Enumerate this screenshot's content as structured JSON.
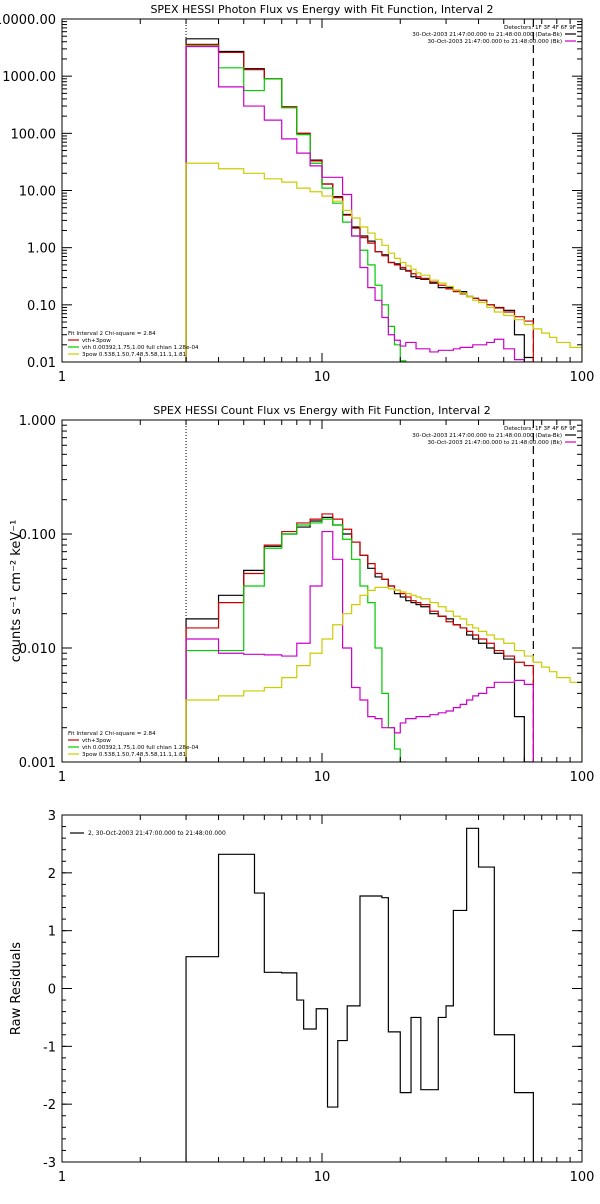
{
  "chart_data": [
    {
      "type": "line",
      "title": "SPEX HESSI Photon Flux vs Energy with Fit Function, Interval 2",
      "xscale": "log",
      "yscale": "log",
      "xlim": [
        1,
        100
      ],
      "ylim": [
        0.01,
        10000
      ],
      "xticks": [
        1,
        10,
        100
      ],
      "xtick_labels": [
        "1",
        "10",
        "100"
      ],
      "yticks": [
        0.01,
        0.1,
        1,
        10,
        100,
        1000,
        10000
      ],
      "ytick_labels": [
        "0.01",
        "0.10",
        "1.00",
        "10.00",
        "100.00",
        "1000.00",
        "10000.00"
      ],
      "dotted_x": 3,
      "dashed_x": 65,
      "info_lines": [
        "Detectors: 1F 3F 4F 6F 9F",
        "30-Oct-2003 21:47:00.000 to 21:48:00.000 (Data-Bk)",
        "30-Oct-2003 21:47:00.000 to 21:48:00.000 (Bk)"
      ],
      "info_colors": [
        "",
        "#000000",
        "#cc00cc"
      ],
      "fit_lines": [
        "Fit Interval 2   Chi-square = 2.84",
        "vth+3pow",
        "vth 0.00392,1.75,1.00  full chian 1.28e-04",
        "3pow 0.538,1.50,7.48,5.58,11.1,1.81"
      ],
      "fit_colors": [
        "",
        "#cc0000",
        "#00cc00",
        "#cccc00"
      ],
      "edges": [
        3,
        3.5,
        4,
        4.5,
        5,
        5.5,
        6,
        6.5,
        7,
        7.5,
        8,
        8.5,
        9,
        9.5,
        10,
        10.5,
        11,
        11.5,
        12,
        12.5,
        13,
        14,
        15,
        16,
        17,
        18,
        19,
        20,
        21,
        22,
        23,
        24,
        26,
        28,
        30,
        32,
        34,
        36,
        38,
        40,
        43,
        46,
        50,
        55,
        60,
        65,
        70,
        75,
        80,
        90,
        100
      ],
      "series": [
        {
          "color": "#000000",
          "values": [
            4500,
            4500,
            2700,
            2700,
            1350,
            1350,
            900,
            900,
            290,
            290,
            100,
            100,
            34,
            34,
            13,
            13,
            7.8,
            7.8,
            3.8,
            3.8,
            2.3,
            1.6,
            1.3,
            0.85,
            0.75,
            0.55,
            0.52,
            0.42,
            0.39,
            0.31,
            0.29,
            0.28,
            0.24,
            0.2,
            0.2,
            0.18,
            0.17,
            0.14,
            0.13,
            0.12,
            0.1,
            0.09,
            0.08,
            0.03,
            0.012,
            null,
            null,
            null,
            null,
            null
          ]
        },
        {
          "color": "#cc0000",
          "values": [
            3600,
            3600,
            2600,
            2600,
            1300,
            1300,
            900,
            900,
            290,
            290,
            100,
            100,
            33,
            33,
            13,
            13,
            7.5,
            7.5,
            3.7,
            3.7,
            2.2,
            1.5,
            1.2,
            0.85,
            0.72,
            0.55,
            0.5,
            0.45,
            0.4,
            0.35,
            0.31,
            0.29,
            0.25,
            0.22,
            0.19,
            0.17,
            0.155,
            0.14,
            0.13,
            0.12,
            0.1,
            0.088,
            0.075,
            0.062,
            0.052,
            null,
            null,
            null,
            null,
            null
          ]
        },
        {
          "color": "#00cc00",
          "values": [
            3400,
            3400,
            1400,
            1400,
            560,
            560,
            900,
            900,
            280,
            280,
            95,
            95,
            30,
            30,
            11,
            11,
            6,
            6,
            2.8,
            2.8,
            1.6,
            0.9,
            0.5,
            0.22,
            0.1,
            0.042,
            0.02,
            0.0105,
            null,
            null,
            null,
            null,
            null,
            null,
            null,
            null,
            null,
            null,
            null,
            null,
            null,
            null,
            null,
            null,
            null,
            null,
            null,
            null,
            null,
            null
          ]
        },
        {
          "color": "#cc00cc",
          "values": [
            3300,
            3300,
            650,
            650,
            300,
            300,
            170,
            170,
            80,
            80,
            45,
            45,
            27,
            27,
            17,
            17,
            17,
            17,
            8.5,
            8.5,
            1.6,
            0.45,
            0.2,
            0.12,
            0.06,
            0.03,
            0.024,
            0.019,
            0.022,
            0.022,
            0.017,
            0.017,
            0.015,
            0.016,
            0.016,
            0.017,
            0.018,
            0.018,
            0.02,
            0.02,
            0.022,
            0.025,
            0.017,
            0.011,
            0.01,
            null,
            null,
            null,
            null,
            null
          ]
        },
        {
          "color": "#cccc00",
          "values": [
            30,
            30,
            24,
            24,
            20,
            20,
            16,
            16,
            14,
            14,
            11,
            11,
            9.5,
            9.5,
            8,
            8,
            6.5,
            6.5,
            4.5,
            4.5,
            3.3,
            2.3,
            1.8,
            1.4,
            1.1,
            0.8,
            0.65,
            0.55,
            0.48,
            0.42,
            0.36,
            0.33,
            0.27,
            0.24,
            0.21,
            0.18,
            0.16,
            0.14,
            0.12,
            0.11,
            0.09,
            0.075,
            0.065,
            0.055,
            0.045,
            0.038,
            0.032,
            0.027,
            0.022,
            0.018
          ]
        }
      ]
    },
    {
      "type": "line",
      "title": "SPEX HESSI Count Flux vs Energy with Fit Function, Interval 2",
      "ylabel": "counts s⁻¹ cm⁻² keV⁻¹",
      "xscale": "log",
      "yscale": "log",
      "xlim": [
        1,
        100
      ],
      "ylim": [
        0.001,
        1
      ],
      "xticks": [
        1,
        10,
        100
      ],
      "xtick_labels": [
        "1",
        "10",
        "100"
      ],
      "yticks": [
        0.001,
        0.01,
        0.1,
        1
      ],
      "ytick_labels": [
        "0.001",
        "0.010",
        "0.100",
        "1.000"
      ],
      "dotted_x": 3,
      "dashed_x": 65,
      "info_lines": [
        "Detectors: 1F 3F 4F 6F 9F",
        "30-Oct-2003 21:47:00.000 to 21:48:00.000 (Data-Bk)",
        "30-Oct-2003 21:47:00.000 to 21:48:00.000 (Bk)"
      ],
      "info_colors": [
        "",
        "#000000",
        "#cc00cc"
      ],
      "fit_lines": [
        "Fit Interval 2   Chi-square = 2.84",
        "vth+3pow",
        "vth 0.00392,1.75,1.00  full chian 1.28e-04",
        "3pow 0.538,1.50,7.48,5.58,11.1,1.81"
      ],
      "fit_colors": [
        "",
        "#cc0000",
        "#00cc00",
        "#cccc00"
      ],
      "edges": [
        3,
        3.5,
        4,
        4.5,
        5,
        5.5,
        6,
        6.5,
        7,
        7.5,
        8,
        8.5,
        9,
        9.5,
        10,
        10.5,
        11,
        11.5,
        12,
        12.5,
        13,
        14,
        15,
        16,
        17,
        18,
        19,
        20,
        21,
        22,
        23,
        24,
        26,
        28,
        30,
        32,
        34,
        36,
        38,
        40,
        43,
        46,
        50,
        55,
        60,
        65,
        70,
        75,
        80,
        90,
        100
      ],
      "series": [
        {
          "color": "#000000",
          "values": [
            0.018,
            0.018,
            0.029,
            0.029,
            0.048,
            0.048,
            0.078,
            0.078,
            0.1,
            0.1,
            0.115,
            0.115,
            0.13,
            0.13,
            0.14,
            0.14,
            0.12,
            0.12,
            0.1,
            0.1,
            0.085,
            0.065,
            0.05,
            0.042,
            0.04,
            0.035,
            0.03,
            0.028,
            0.026,
            0.025,
            0.024,
            0.023,
            0.02,
            0.019,
            0.018,
            0.016,
            0.015,
            0.013,
            0.012,
            0.011,
            0.01,
            0.009,
            0.008,
            0.0025,
            0.001,
            null,
            null,
            null,
            null,
            null
          ]
        },
        {
          "color": "#cc0000",
          "values": [
            0.015,
            0.015,
            0.025,
            0.025,
            0.045,
            0.045,
            0.08,
            0.08,
            0.105,
            0.105,
            0.125,
            0.125,
            0.135,
            0.135,
            0.15,
            0.15,
            0.135,
            0.135,
            0.11,
            0.11,
            0.085,
            0.065,
            0.055,
            0.045,
            0.04,
            0.035,
            0.032,
            0.03,
            0.028,
            0.026,
            0.025,
            0.024,
            0.021,
            0.019,
            0.017,
            0.016,
            0.015,
            0.014,
            0.013,
            0.012,
            0.011,
            0.0095,
            0.0085,
            0.0075,
            0.007,
            null,
            null,
            null,
            null,
            null
          ]
        },
        {
          "color": "#00cc00",
          "values": [
            0.0095,
            0.0095,
            0.0095,
            0.0095,
            0.035,
            0.035,
            0.075,
            0.075,
            0.1,
            0.1,
            0.12,
            0.12,
            0.125,
            0.125,
            0.135,
            0.135,
            0.12,
            0.12,
            0.09,
            0.09,
            0.06,
            0.035,
            0.025,
            0.01,
            0.004,
            0.002,
            0.0013,
            0.001,
            null,
            null,
            null,
            null,
            null,
            null,
            null,
            null,
            null,
            null,
            null,
            null,
            null,
            null,
            null,
            null,
            null,
            null,
            null,
            null,
            null,
            null
          ]
        },
        {
          "color": "#cc00cc",
          "values": [
            0.012,
            0.012,
            0.009,
            0.009,
            0.0088,
            0.0088,
            0.0087,
            0.0087,
            0.0085,
            0.0085,
            0.011,
            0.011,
            0.035,
            0.035,
            0.105,
            0.105,
            0.06,
            0.06,
            0.01,
            0.01,
            0.0045,
            0.0035,
            0.0025,
            0.0024,
            0.002,
            0.002,
            0.0018,
            0.0022,
            0.0024,
            0.0024,
            0.0025,
            0.0025,
            0.0026,
            0.0027,
            0.0028,
            0.003,
            0.0032,
            0.0035,
            0.0038,
            0.004,
            0.0045,
            0.005,
            0.005,
            0.0052,
            0.0048,
            null,
            null,
            null,
            null,
            null
          ]
        },
        {
          "color": "#cccc00",
          "values": [
            0.0035,
            0.0035,
            0.0038,
            0.0038,
            0.0042,
            0.0042,
            0.0045,
            0.0045,
            0.0055,
            0.0055,
            0.007,
            0.007,
            0.009,
            0.009,
            0.012,
            0.012,
            0.016,
            0.016,
            0.02,
            0.02,
            0.024,
            0.029,
            0.032,
            0.034,
            0.034,
            0.033,
            0.032,
            0.031,
            0.03,
            0.029,
            0.028,
            0.027,
            0.025,
            0.023,
            0.021,
            0.019,
            0.018,
            0.016,
            0.015,
            0.014,
            0.013,
            0.012,
            0.011,
            0.0095,
            0.0085,
            0.0075,
            0.0068,
            0.0062,
            0.0055,
            0.005
          ]
        }
      ]
    },
    {
      "type": "line",
      "ylabel": "Raw Residuals",
      "xscale": "log",
      "yscale": "linear",
      "xlim": [
        1,
        100
      ],
      "ylim": [
        -3,
        3
      ],
      "xticks": [
        1,
        10,
        100
      ],
      "xtick_labels": [
        "1",
        "10",
        "100"
      ],
      "yticks": [
        -3,
        -2,
        -1,
        0,
        1,
        2,
        3
      ],
      "ytick_labels": [
        "-3",
        "-2",
        "-1",
        "0",
        "1",
        "2",
        "3"
      ],
      "legend_text": "2, 30-Oct-2003 21:47:00.000 to 21:48:00.000",
      "edges": [
        3,
        3.5,
        4,
        4.5,
        5,
        5.5,
        6,
        6.5,
        7,
        7.5,
        8,
        8.5,
        9,
        9.5,
        10,
        10.5,
        11,
        11.5,
        12,
        12.5,
        13,
        14,
        15,
        16,
        17,
        18,
        19,
        20,
        21,
        22,
        23,
        24,
        26,
        28,
        30,
        32,
        34,
        36,
        38,
        40,
        43,
        46,
        50,
        55,
        60,
        65
      ],
      "series": [
        {
          "color": "#000000",
          "values": [
            0.55,
            0.55,
            2.32,
            2.32,
            2.32,
            1.65,
            0.28,
            0.28,
            0.27,
            0.27,
            -0.2,
            -0.7,
            -0.7,
            -0.35,
            -0.35,
            -2.05,
            -2.05,
            -0.9,
            -0.9,
            -0.3,
            -0.3,
            1.6,
            1.6,
            1.6,
            1.57,
            -0.75,
            -0.75,
            -1.8,
            -1.8,
            -0.5,
            -0.5,
            -1.75,
            -1.75,
            -0.5,
            -0.3,
            1.35,
            1.35,
            2.77,
            2.77,
            2.1,
            2.1,
            -0.8,
            -0.8,
            -1.8,
            -1.8
          ]
        }
      ]
    }
  ]
}
